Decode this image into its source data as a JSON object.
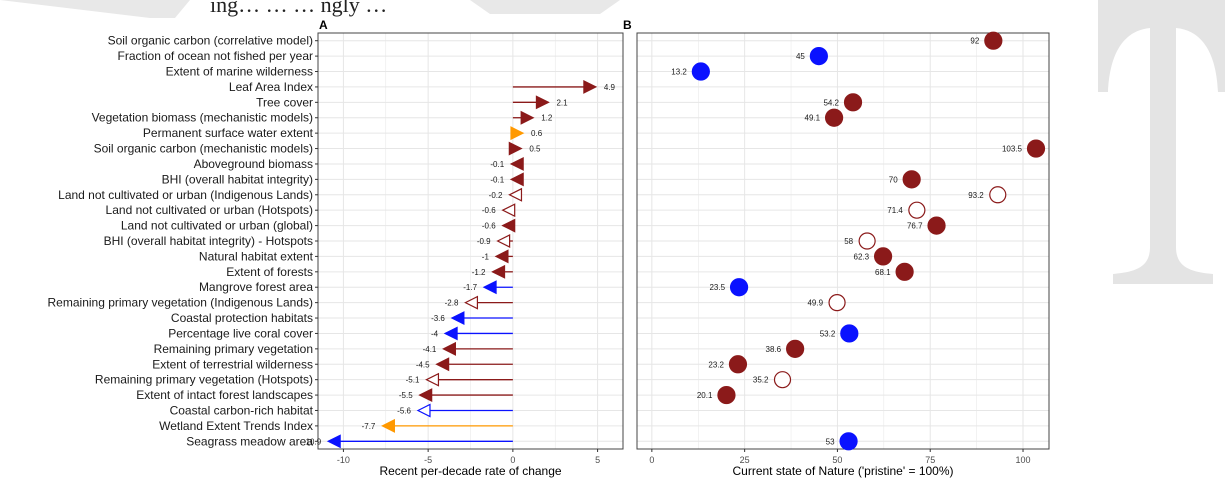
{
  "header_fragment": "ing… … … ngly …",
  "colors": {
    "dark_red": "#8b1a1a",
    "blue": "#0a12ff",
    "orange": "#ff9900",
    "grid": "#e6e6e6",
    "panel_border": "#444444"
  },
  "chart_data": [
    {
      "panel": "A",
      "type": "arrow",
      "title": "",
      "xlabel": "Recent per-decade rate of change",
      "ylabel": "",
      "xlim": [
        -11.5,
        6.5
      ],
      "xticks": [
        -10,
        -5,
        0,
        5
      ],
      "grid": true,
      "categories": [
        "Soil organic carbon (correlative model)",
        "Fraction of ocean not fished per year",
        "Extent of marine wilderness",
        "Leaf Area Index",
        "Tree cover",
        "Vegetation biomass (mechanistic models)",
        "Permanent surface water extent",
        "Soil organic carbon (mechanistic models)",
        "Aboveground biomass",
        "BHI (overall habitat integrity)",
        "Land not cultivated or urban (Indigenous Lands)",
        "Land not cultivated or urban (Hotspots)",
        "Land not cultivated or urban (global)",
        "BHI (overall habitat integrity) - Hotspots",
        "Natural habitat extent",
        "Extent of forests",
        "Mangrove forest area",
        "Remaining primary vegetation (Indigenous Lands)",
        "Coastal protection habitats",
        "Percentage live coral cover",
        "Remaining primary vegetation",
        "Extent of terrestrial wilderness",
        "Remaining primary vegetation (Hotspots)",
        "Extent of intact forest landscapes",
        "Coastal carbon-rich habitat",
        "Wetland Extent Trends Index",
        "Seagrass meadow area"
      ],
      "values": [
        null,
        null,
        null,
        4.9,
        2.1,
        1.2,
        0.6,
        0.5,
        -0.1,
        -0.1,
        -0.2,
        -0.6,
        -0.6,
        -0.9,
        -1,
        -1.2,
        -1.7,
        -2.8,
        -3.6,
        -4,
        -4.1,
        -4.5,
        -5.1,
        -5.5,
        -5.6,
        -7.7,
        -10.9
      ],
      "labels": [
        "",
        "",
        "",
        "4.9",
        "2.1",
        "1.2",
        "0.6",
        "0.5",
        "-0.1",
        "-0.1",
        "-0.2",
        "-0.6",
        "-0.6",
        "-0.9",
        "-1",
        "-1.2",
        "-1.7",
        "-2.8",
        "-3.6",
        "-4",
        "-4.1",
        "-4.5",
        "-5.1",
        "-5.5",
        "-5.6",
        "-7.7",
        "-10.9"
      ],
      "colors": [
        null,
        null,
        null,
        "dark_red",
        "dark_red",
        "dark_red",
        "orange",
        "dark_red",
        "dark_red",
        "dark_red",
        "dark_red",
        "dark_red",
        "dark_red",
        "dark_red",
        "dark_red",
        "dark_red",
        "blue",
        "dark_red",
        "blue",
        "blue",
        "dark_red",
        "dark_red",
        "dark_red",
        "dark_red",
        "blue",
        "orange",
        "blue"
      ],
      "filled": [
        null,
        null,
        null,
        true,
        true,
        true,
        true,
        true,
        true,
        true,
        false,
        false,
        true,
        false,
        true,
        true,
        true,
        false,
        true,
        true,
        true,
        true,
        false,
        true,
        false,
        true,
        true
      ]
    },
    {
      "panel": "B",
      "type": "scatter",
      "title": "",
      "xlabel": "Current state of Nature ('pristine' = 100%)",
      "ylabel": "",
      "xlim": [
        -4,
        107
      ],
      "xticks": [
        0,
        25,
        50,
        75,
        100
      ],
      "grid": true,
      "values": [
        92,
        45,
        13.2,
        null,
        54.2,
        49.1,
        null,
        103.5,
        null,
        70,
        93.2,
        71.4,
        76.7,
        58,
        62.3,
        68.1,
        23.5,
        49.9,
        null,
        53.2,
        38.6,
        23.2,
        35.2,
        20.1,
        null,
        null,
        53
      ],
      "labels": [
        "92",
        "45",
        "13.2",
        "",
        "54.2",
        "49.1",
        "",
        "103.5",
        "",
        "70",
        "93.2",
        "71.4",
        "76.7",
        "58",
        "62.3",
        "68.1",
        "23.5",
        "49.9",
        "",
        "53.2",
        "38.6",
        "23.2",
        "35.2",
        "20.1",
        "",
        "",
        "53"
      ],
      "colors": [
        "dark_red",
        "blue",
        "blue",
        null,
        "dark_red",
        "dark_red",
        null,
        "dark_red",
        null,
        "dark_red",
        "dark_red",
        "dark_red",
        "dark_red",
        "dark_red",
        "dark_red",
        "dark_red",
        "blue",
        "dark_red",
        null,
        "blue",
        "dark_red",
        "dark_red",
        "dark_red",
        "dark_red",
        null,
        null,
        "blue"
      ],
      "filled": [
        true,
        true,
        true,
        null,
        true,
        true,
        null,
        true,
        null,
        true,
        false,
        false,
        true,
        false,
        true,
        true,
        true,
        false,
        null,
        true,
        true,
        true,
        false,
        true,
        null,
        null,
        true
      ]
    }
  ]
}
